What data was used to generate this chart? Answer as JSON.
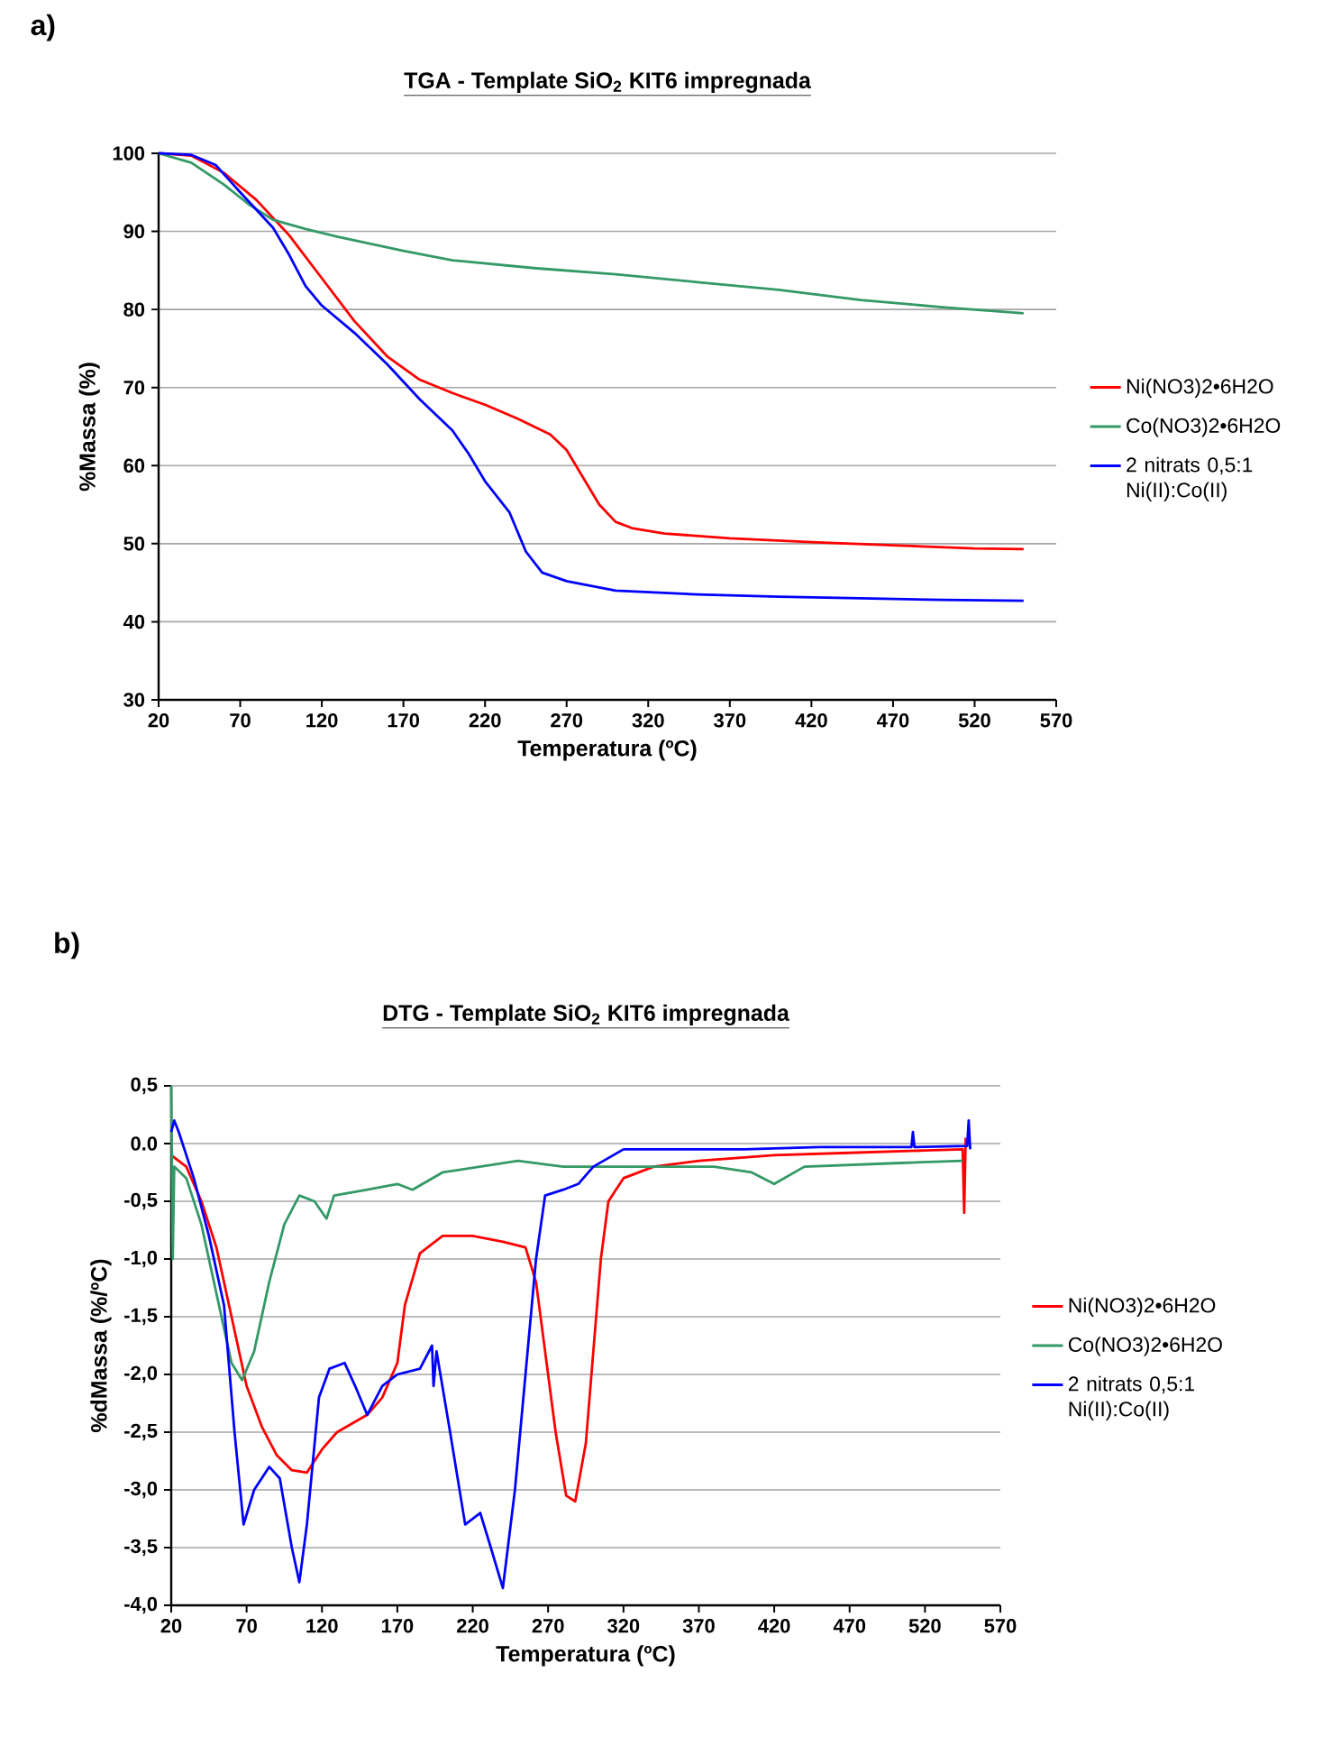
{
  "chart_data": [
    {
      "type": "line",
      "title": "TGA - Template SiO$_{2}$ KIT6 impregnada",
      "xlabel": "Temperatura (ºC)",
      "ylabel": "%Massa  (%)",
      "annotations": [
        "a)"
      ],
      "xlim": [
        20,
        570
      ],
      "xticks": [
        20,
        70,
        120,
        170,
        220,
        270,
        320,
        370,
        420,
        470,
        520,
        570
      ],
      "ylim": [
        30,
        100
      ],
      "yticks": [
        30,
        40,
        50,
        60,
        70,
        80,
        90,
        100
      ],
      "grid": "y",
      "legend": "right",
      "marker": "none",
      "line_style": "solid",
      "series": [
        {
          "name": "Ni(NO3)2•6H2O",
          "color": "#ff0000",
          "x": [
            20,
            40,
            60,
            80,
            100,
            120,
            140,
            160,
            180,
            200,
            220,
            240,
            260,
            270,
            280,
            290,
            300,
            310,
            330,
            370,
            420,
            470,
            520,
            550
          ],
          "values": [
            100,
            99.7,
            97.5,
            94,
            89.5,
            84,
            78.5,
            74,
            71,
            69.3,
            67.8,
            66,
            64,
            62,
            58.5,
            55,
            52.8,
            52,
            51.3,
            50.7,
            50.2,
            49.8,
            49.4,
            49.3
          ]
        },
        {
          "name": "Co(NO3)2•6H2O",
          "color": "#339966",
          "x": [
            20,
            40,
            60,
            75,
            90,
            110,
            130,
            170,
            200,
            250,
            300,
            350,
            400,
            450,
            500,
            550
          ],
          "values": [
            100,
            98.8,
            96,
            93.5,
            91.5,
            90.3,
            89.3,
            87.5,
            86.3,
            85.3,
            84.5,
            83.5,
            82.5,
            81.2,
            80.3,
            79.5
          ]
        },
        {
          "name": "2 nitrats 0,5:1 Ni(II):Co(II)",
          "color": "#0000ff",
          "x": [
            20,
            40,
            55,
            70,
            90,
            100,
            110,
            120,
            140,
            160,
            180,
            200,
            210,
            220,
            235,
            245,
            255,
            270,
            300,
            350,
            400,
            450,
            500,
            550
          ],
          "values": [
            100,
            99.8,
            98.5,
            95,
            90.5,
            87,
            83,
            80.5,
            77,
            73,
            68.5,
            64.5,
            61.5,
            58,
            54,
            49,
            46.3,
            45.2,
            44,
            43.5,
            43.2,
            43,
            42.8,
            42.7
          ]
        }
      ]
    },
    {
      "type": "line",
      "title": "DTG - Template SiO$_{2}$ KIT6 impregnada",
      "xlabel": "Temperatura (ºC)",
      "ylabel": "%dMassa  (%/ºC)",
      "annotations": [
        "b)"
      ],
      "xlim": [
        20,
        570
      ],
      "xticks": [
        20,
        70,
        120,
        170,
        220,
        270,
        320,
        370,
        420,
        470,
        520,
        570
      ],
      "ylim": [
        -4,
        0.5
      ],
      "yticks": [
        {
          "value": -4,
          "label": "-4,0"
        },
        {
          "value": -3.5,
          "label": "-3,5"
        },
        {
          "value": -3,
          "label": "-3,0"
        },
        {
          "value": -2.5,
          "label": "-2,5"
        },
        {
          "value": -2,
          "label": "-2,0"
        },
        {
          "value": -1.5,
          "label": "-1,5"
        },
        {
          "value": -1,
          "label": "-1,0"
        },
        {
          "value": -0.5,
          "label": "-0,5"
        },
        {
          "value": 0,
          "label": "0.0"
        },
        {
          "value": 0.5,
          "label": "0,5"
        }
      ],
      "grid": "y",
      "legend": "right",
      "marker": "none",
      "line_style": "solid",
      "series": [
        {
          "name": "Ni(NO3)2•6H2O",
          "color": "#ff0000",
          "x": [
            20,
            30,
            40,
            50,
            60,
            70,
            80,
            90,
            100,
            110,
            120,
            130,
            150,
            160,
            170,
            175,
            185,
            200,
            220,
            240,
            255,
            262,
            268,
            275,
            282,
            288,
            295,
            300,
            305,
            310,
            320,
            340,
            370,
            420,
            470,
            520,
            545,
            546,
            547
          ],
          "values": [
            -0.1,
            -0.2,
            -0.5,
            -0.9,
            -1.5,
            -2.1,
            -2.45,
            -2.7,
            -2.83,
            -2.85,
            -2.65,
            -2.5,
            -2.35,
            -2.2,
            -1.9,
            -1.4,
            -0.95,
            -0.8,
            -0.8,
            -0.85,
            -0.9,
            -1.2,
            -1.8,
            -2.5,
            -3.05,
            -3.1,
            -2.6,
            -1.8,
            -1.0,
            -0.5,
            -0.3,
            -0.2,
            -0.15,
            -0.1,
            -0.08,
            -0.06,
            -0.05,
            -0.6,
            0.05
          ]
        },
        {
          "name": "Co(NO3)2•6H2O",
          "color": "#339966",
          "x": [
            20,
            21,
            22,
            30,
            40,
            50,
            60,
            67,
            75,
            85,
            95,
            105,
            115,
            123,
            128,
            150,
            170,
            180,
            200,
            250,
            280,
            320,
            380,
            405,
            420,
            440,
            500,
            545
          ],
          "values": [
            0.5,
            -1.0,
            -0.2,
            -0.3,
            -0.7,
            -1.3,
            -1.9,
            -2.05,
            -1.8,
            -1.2,
            -0.7,
            -0.45,
            -0.5,
            -0.65,
            -0.45,
            -0.4,
            -0.35,
            -0.4,
            -0.25,
            -0.15,
            -0.2,
            -0.2,
            -0.2,
            -0.25,
            -0.35,
            -0.2,
            -0.17,
            -0.15
          ]
        },
        {
          "name": "2 nitrats 0,5:1 Ni(II):Co(II)",
          "color": "#0000ff",
          "x": [
            20,
            22,
            25,
            35,
            45,
            55,
            62,
            68,
            75,
            85,
            92,
            100,
            105,
            110,
            118,
            125,
            135,
            142,
            150,
            160,
            170,
            185,
            193,
            194,
            196,
            205,
            215,
            225,
            232,
            240,
            248,
            255,
            262,
            268,
            280,
            290,
            300,
            320,
            350,
            400,
            450,
            511,
            512,
            513,
            548,
            549,
            550
          ],
          "values": [
            0.1,
            0.2,
            0.1,
            -0.3,
            -0.8,
            -1.4,
            -2.5,
            -3.3,
            -3.0,
            -2.8,
            -2.9,
            -3.5,
            -3.8,
            -3.3,
            -2.2,
            -1.95,
            -1.9,
            -2.1,
            -2.35,
            -2.1,
            -2.0,
            -1.95,
            -1.75,
            -2.1,
            -1.8,
            -2.5,
            -3.3,
            -3.2,
            -3.5,
            -3.85,
            -3.0,
            -2.0,
            -1.0,
            -0.45,
            -0.4,
            -0.35,
            -0.2,
            -0.05,
            -0.05,
            -0.05,
            -0.03,
            -0.03,
            0.1,
            -0.03,
            -0.02,
            0.2,
            -0.05
          ]
        }
      ]
    }
  ]
}
